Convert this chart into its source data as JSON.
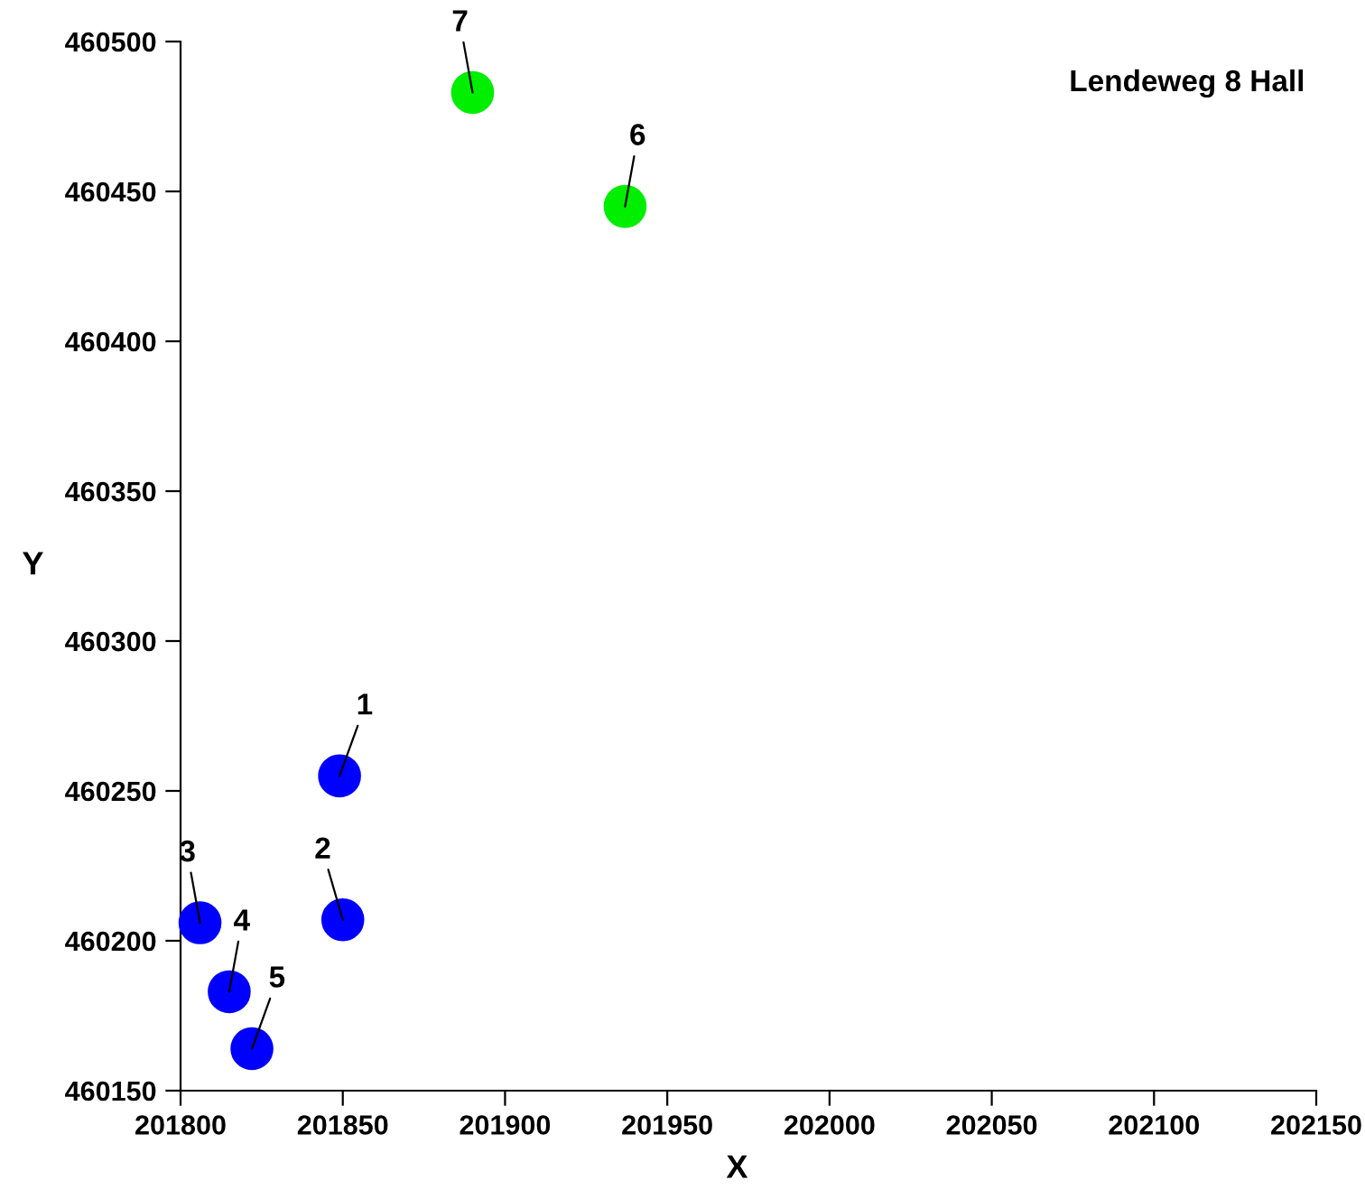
{
  "chart_data": {
    "type": "scatter",
    "title": "Lendeweg 8 Hall",
    "xlabel": "X",
    "ylabel": "Y",
    "series": [
      {
        "color": "#0000ff",
        "x": [
          201849,
          201850,
          201806,
          201815,
          201822
        ],
        "values": [
          460255,
          460207,
          460206,
          460183,
          460164
        ]
      },
      {
        "color": "#00ee00",
        "x": [
          201937,
          201890
        ],
        "values": [
          460445,
          460483
        ]
      }
    ],
    "annotations": [
      {
        "text": "1",
        "x": 201849,
        "y": 460255
      },
      {
        "text": "2",
        "x": 201850,
        "y": 460207
      },
      {
        "text": "3",
        "x": 201806,
        "y": 460206
      },
      {
        "text": "4",
        "x": 201815,
        "y": 460183
      },
      {
        "text": "5",
        "x": 201822,
        "y": 460164
      },
      {
        "text": "6",
        "x": 201937,
        "y": 460445
      },
      {
        "text": "7",
        "x": 201890,
        "y": 460483
      }
    ],
    "xlim": [
      201800,
      202150
    ],
    "ylim": [
      460150,
      460500
    ],
    "xticks": [
      201800,
      201850,
      201900,
      201950,
      202000,
      202050,
      202100,
      202150
    ],
    "yticks": [
      460150,
      460200,
      460250,
      460300,
      460350,
      460400,
      460450,
      460500
    ],
    "marker": "circle",
    "grid": false,
    "legend": false
  }
}
